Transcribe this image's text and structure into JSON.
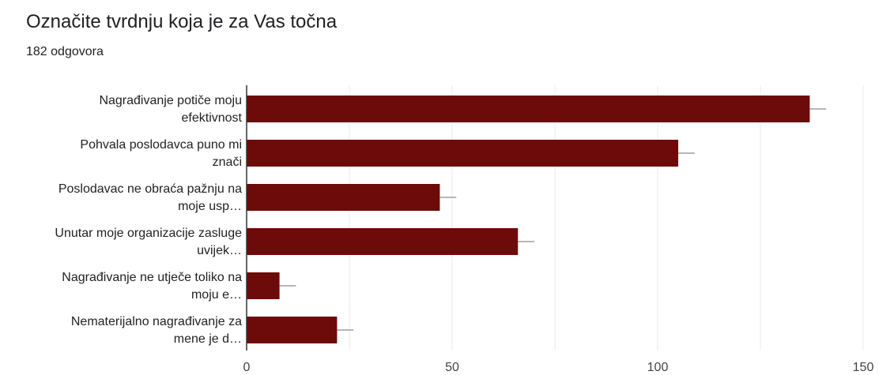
{
  "title": "Označite tvrdnju koja je za Vas točna",
  "subtitle": "182 odgovora",
  "colors": {
    "bar": "#6d0a0a",
    "grid": "#ebebeb",
    "axis": "#333333",
    "error_bar": "#9e9e9e"
  },
  "chart_data": {
    "type": "bar",
    "orientation": "horizontal",
    "categories": [
      [
        "Nagrađivanje potiče moju",
        "efektivnost"
      ],
      [
        "Pohvala poslodavca puno mi",
        "znači"
      ],
      [
        "Poslodavac ne obraća pažnju na",
        "moje usp…"
      ],
      [
        "Unutar moje organizacije zasluge",
        "uvijek…"
      ],
      [
        "Nagrađivanje ne utječe toliko na",
        "moju e…"
      ],
      [
        "Nematerijalno nagrađivanje za",
        "mene je d…"
      ]
    ],
    "values": [
      137,
      105,
      47,
      66,
      8,
      22
    ],
    "error_upper": [
      141,
      109,
      51,
      70,
      12,
      26
    ],
    "xlim": [
      0,
      150
    ],
    "xticks": [
      0,
      50,
      100,
      150
    ],
    "grid": true,
    "error_bars": true
  }
}
